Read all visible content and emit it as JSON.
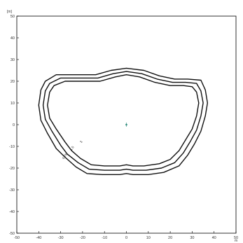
{
  "chart_data": {
    "type": "line",
    "title": "",
    "xlabel": "",
    "ylabel": "",
    "x_unit": "m",
    "y_unit": "[m]",
    "xlim": [
      -50,
      50
    ],
    "ylim": [
      -50,
      50
    ],
    "x_ticks": [
      "-50",
      "-40",
      "-30",
      "-20",
      "-10",
      "0",
      "10",
      "20",
      "30",
      "40",
      "50"
    ],
    "y_ticks": [
      "50",
      "40",
      "30",
      "20",
      "10",
      "0",
      "-10",
      "-20",
      "-30",
      "-40",
      "-50"
    ],
    "grid": false,
    "source_marker": {
      "x": 0,
      "y": 0
    },
    "series": [
      {
        "label": "",
        "points": [
          [
            -35,
            15
          ],
          [
            -33,
            18
          ],
          [
            -28,
            20
          ],
          [
            -20,
            20
          ],
          [
            -12,
            20
          ],
          [
            -5,
            22
          ],
          [
            0,
            23
          ],
          [
            6,
            22
          ],
          [
            13,
            19.5
          ],
          [
            20,
            18
          ],
          [
            26,
            18
          ],
          [
            30,
            17.5
          ],
          [
            32,
            15
          ],
          [
            33,
            10
          ],
          [
            32,
            4
          ],
          [
            30,
            -2
          ],
          [
            27,
            -7
          ],
          [
            24,
            -12
          ],
          [
            20,
            -16
          ],
          [
            15,
            -18
          ],
          [
            8,
            -19
          ],
          [
            3,
            -19
          ],
          [
            0,
            -18.5
          ],
          [
            -3,
            -19
          ],
          [
            -10,
            -19
          ],
          [
            -16,
            -18.5
          ],
          [
            -21,
            -15.5
          ],
          [
            -25,
            -12
          ],
          [
            -28,
            -8
          ],
          [
            -32,
            -2
          ],
          [
            -35,
            3
          ],
          [
            -36,
            9
          ]
        ]
      },
      {
        "label": "",
        "points": [
          [
            -37,
            15.5
          ],
          [
            -35,
            19
          ],
          [
            -30,
            21.5
          ],
          [
            -22,
            21.5
          ],
          [
            -13,
            21.5
          ],
          [
            -6,
            23.5
          ],
          [
            0,
            24.5
          ],
          [
            7,
            23.5
          ],
          [
            14,
            21
          ],
          [
            21,
            19.5
          ],
          [
            27,
            19.5
          ],
          [
            32,
            19
          ],
          [
            34,
            15.5
          ],
          [
            35,
            10
          ],
          [
            34,
            4
          ],
          [
            32,
            -2.5
          ],
          [
            29,
            -8
          ],
          [
            26,
            -13
          ],
          [
            22,
            -17.5
          ],
          [
            16,
            -20
          ],
          [
            9,
            -21
          ],
          [
            3,
            -21
          ],
          [
            0,
            -20.5
          ],
          [
            -3,
            -21
          ],
          [
            -10,
            -21
          ],
          [
            -17,
            -20.5
          ],
          [
            -22,
            -17.5
          ],
          [
            -27,
            -13.5
          ],
          [
            -30,
            -9.5
          ],
          [
            -34,
            -3
          ],
          [
            -37,
            2.5
          ],
          [
            -38,
            9
          ]
        ]
      },
      {
        "label": "",
        "points": [
          [
            -39,
            16
          ],
          [
            -37,
            20
          ],
          [
            -32,
            23
          ],
          [
            -24,
            23
          ],
          [
            -14,
            23
          ],
          [
            -7,
            25
          ],
          [
            0,
            26
          ],
          [
            8,
            25
          ],
          [
            15,
            22.5
          ],
          [
            22,
            21
          ],
          [
            28,
            21
          ],
          [
            34,
            20.5
          ],
          [
            36,
            16
          ],
          [
            37,
            10
          ],
          [
            36,
            4
          ],
          [
            34,
            -3
          ],
          [
            31,
            -9
          ],
          [
            28,
            -14
          ],
          [
            24,
            -19
          ],
          [
            17,
            -22
          ],
          [
            10,
            -23
          ],
          [
            3,
            -23
          ],
          [
            0,
            -22.5
          ],
          [
            -3,
            -23
          ],
          [
            -11,
            -23
          ],
          [
            -18,
            -22.5
          ],
          [
            -23,
            -19.5
          ],
          [
            -28,
            -15
          ],
          [
            -32,
            -11
          ],
          [
            -36,
            -4
          ],
          [
            -39,
            2
          ],
          [
            -40,
            9
          ]
        ]
      }
    ],
    "contour_labels": [
      {
        "text": "3",
        "x": -20.5,
        "y": -8.5
      },
      {
        "text": "1.5",
        "x": -25,
        "y": -12
      },
      {
        "text": "0.75",
        "x": -28.5,
        "y": -16
      }
    ]
  }
}
